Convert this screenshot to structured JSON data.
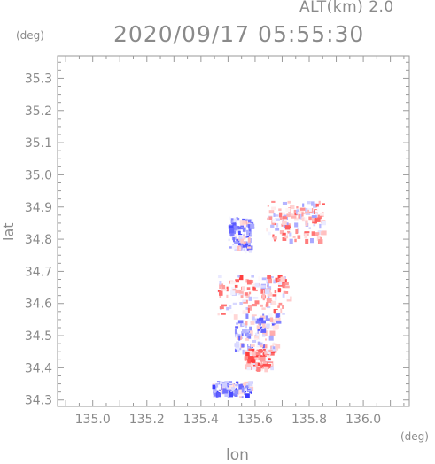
{
  "header": {
    "altitude": "ALT(km) 2.0",
    "timestamp": "2020/09/17 05:55:30"
  },
  "chart_data": {
    "type": "heatmap",
    "xlabel": "lon",
    "ylabel": "lat",
    "x_unit": "(deg)",
    "y_unit": "(deg)",
    "xlim": [
      134.87,
      136.17
    ],
    "ylim": [
      34.28,
      35.37
    ],
    "x_ticks": [
      "135.0",
      "135.2",
      "135.4",
      "135.6",
      "135.8",
      "136.0"
    ],
    "y_ticks": [
      "34.3",
      "34.4",
      "34.5",
      "34.6",
      "34.7",
      "34.8",
      "34.9",
      "35.0",
      "35.1",
      "35.2",
      "35.3"
    ],
    "grid": false,
    "color_scale": {
      "negative": "#3c3cff",
      "zero": "#ffffff",
      "positive": "#ff3c3c"
    },
    "regions": [
      {
        "lon": [
          135.46,
          135.72
        ],
        "lat": [
          34.57,
          34.69
        ],
        "value": 0.3
      },
      {
        "lon": [
          135.52,
          135.68
        ],
        "lat": [
          34.45,
          34.57
        ],
        "value": -0.2
      },
      {
        "lon": [
          135.56,
          135.66
        ],
        "lat": [
          34.4,
          34.46
        ],
        "value": 0.5
      },
      {
        "lon": [
          135.64,
          135.85
        ],
        "lat": [
          34.8,
          34.92
        ],
        "value": 0.2
      },
      {
        "lon": [
          135.44,
          135.58
        ],
        "lat": [
          34.32,
          34.36
        ],
        "value": -0.4
      },
      {
        "lon": [
          135.5,
          135.58
        ],
        "lat": [
          34.77,
          34.87
        ],
        "value": -0.3
      }
    ]
  }
}
